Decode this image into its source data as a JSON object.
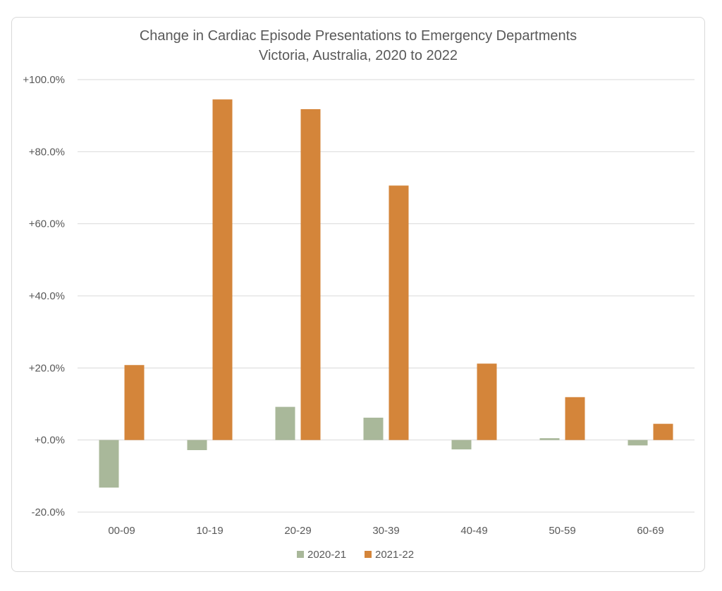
{
  "chart_data": {
    "type": "bar",
    "title": [
      "Change in Cardiac Episode Presentations to Emergency Departments",
      "Victoria, Australia, 2020 to 2022"
    ],
    "xlabel": "",
    "ylabel": "",
    "categories": [
      "00-09",
      "10-19",
      "20-29",
      "30-39",
      "40-49",
      "50-59",
      "60-69"
    ],
    "series": [
      {
        "name": "2020-21",
        "color": "#a9b89a",
        "values": [
          -13.2,
          -2.8,
          9.2,
          6.2,
          -2.6,
          0.5,
          -1.5
        ]
      },
      {
        "name": "2021-22",
        "color": "#d4853a",
        "values": [
          20.8,
          94.5,
          91.8,
          70.6,
          21.2,
          11.9,
          4.5
        ]
      }
    ],
    "ylim": [
      -20,
      100
    ],
    "yticks": [
      -20,
      0,
      20,
      40,
      60,
      80,
      100
    ],
    "ytick_labels": [
      "-20.0%",
      "+0.0%",
      "+20.0%",
      "+40.0%",
      "+60.0%",
      "+80.0%",
      "+100.0%"
    ],
    "grid": true,
    "legend": "bottom"
  }
}
